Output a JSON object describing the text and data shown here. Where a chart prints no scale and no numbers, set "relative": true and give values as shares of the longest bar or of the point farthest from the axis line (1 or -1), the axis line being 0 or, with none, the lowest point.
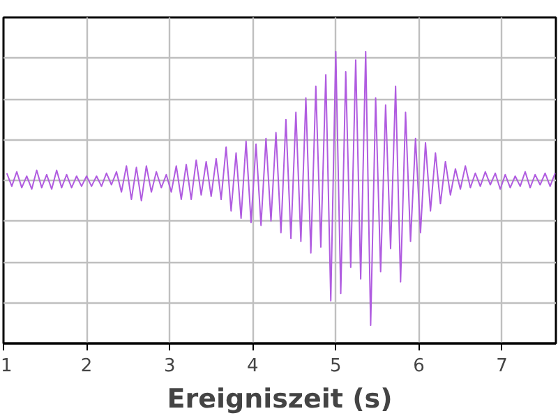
{
  "chart_data": {
    "type": "line",
    "relative": true,
    "xlabel": "Ereigniszeit (s)",
    "xlim": [
      1.0,
      7.65
    ],
    "xticks": [
      1,
      2,
      3,
      4,
      5,
      6,
      7
    ],
    "grid": true,
    "tick_labels": "x",
    "x": [
      1.04,
      1.1,
      1.16,
      1.22,
      1.28,
      1.34,
      1.4,
      1.46,
      1.52,
      1.58,
      1.64,
      1.7,
      1.76,
      1.82,
      1.88,
      1.94,
      2,
      2.06,
      2.12,
      2.18,
      2.24,
      2.3,
      2.36,
      2.42,
      2.48,
      2.54,
      2.6,
      2.66,
      2.72,
      2.78,
      2.84,
      2.9,
      2.96,
      3.02,
      3.08,
      3.14,
      3.2,
      3.26,
      3.32,
      3.38,
      3.44,
      3.5,
      3.56,
      3.62,
      3.68,
      3.74,
      3.8,
      3.86,
      3.92,
      3.98,
      4.04,
      4.1,
      4.16,
      4.22,
      4.28,
      4.34,
      4.4,
      4.46,
      4.52,
      4.58,
      4.64,
      4.7,
      4.76,
      4.82,
      4.88,
      4.94,
      5,
      5.06,
      5.12,
      5.18,
      5.24,
      5.3,
      5.36,
      5.42,
      5.48,
      5.54,
      5.6,
      5.66,
      5.72,
      5.78,
      5.84,
      5.9,
      5.96,
      6.02,
      6.08,
      6.14,
      6.2,
      6.26,
      6.32,
      6.38,
      6.44,
      6.5,
      6.56,
      6.62,
      6.68,
      6.74,
      6.8,
      6.86,
      6.92,
      6.98,
      7.04,
      7.1,
      7.16,
      7.22,
      7.28,
      7.34,
      7.4,
      7.46,
      7.52,
      7.58,
      7.64
    ],
    "series": [
      {
        "color": "#b05ce0",
        "values": [
          0.05,
          -0.04,
          0.06,
          -0.05,
          0.03,
          -0.06,
          0.07,
          -0.05,
          0.04,
          -0.06,
          0.07,
          -0.05,
          0.04,
          -0.05,
          0.03,
          -0.04,
          0.03,
          -0.04,
          0.03,
          -0.04,
          0.05,
          -0.03,
          0.06,
          -0.08,
          0.1,
          -0.13,
          0.09,
          -0.14,
          0.1,
          -0.08,
          0.06,
          -0.05,
          0.04,
          -0.08,
          0.1,
          -0.13,
          0.11,
          -0.13,
          0.14,
          -0.1,
          0.13,
          -0.11,
          0.15,
          -0.13,
          0.23,
          -0.21,
          0.19,
          -0.26,
          0.27,
          -0.29,
          0.25,
          -0.31,
          0.29,
          -0.28,
          0.33,
          -0.36,
          0.42,
          -0.4,
          0.47,
          -0.42,
          0.57,
          -0.5,
          0.65,
          -0.46,
          0.73,
          -0.83,
          0.89,
          -0.78,
          0.75,
          -0.6,
          0.83,
          -0.68,
          0.89,
          -1,
          0.57,
          -0.63,
          0.52,
          -0.47,
          0.65,
          -0.7,
          0.47,
          -0.42,
          0.29,
          -0.36,
          0.26,
          -0.21,
          0.19,
          -0.16,
          0.13,
          -0.1,
          0.08,
          -0.06,
          0.1,
          -0.05,
          0.05,
          -0.04,
          0.06,
          -0.03,
          0.05,
          -0.06,
          0.04,
          -0.05,
          0.03,
          -0.04,
          0.06,
          -0.05,
          0.04,
          -0.03,
          0.05,
          -0.04,
          0.05
        ]
      }
    ]
  }
}
